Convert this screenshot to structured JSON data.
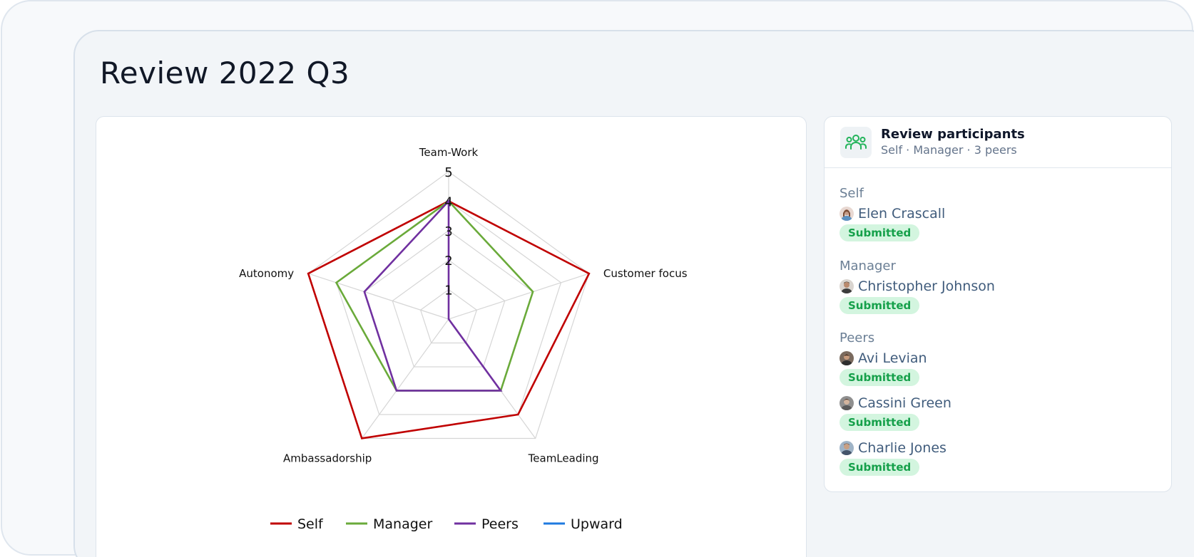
{
  "page": {
    "title": "Review 2022 Q3"
  },
  "participants": {
    "title": "Review participants",
    "subtitle": "Self · Manager · 3 peers",
    "header_icon": "users-icon",
    "groups": [
      {
        "label": "Self",
        "people": [
          {
            "name": "Elen Crascall",
            "status": "Submitted"
          }
        ]
      },
      {
        "label": "Manager",
        "people": [
          {
            "name": "Christopher Johnson",
            "status": "Submitted"
          }
        ]
      },
      {
        "label": "Peers",
        "people": [
          {
            "name": "Avi Levian",
            "status": "Submitted"
          },
          {
            "name": "Cassini Green",
            "status": "Submitted"
          },
          {
            "name": "Charlie Jones",
            "status": "Submitted"
          }
        ]
      }
    ],
    "colors": {
      "badge_bg": "#d3f5df",
      "badge_text": "#15a04a",
      "accent": "#22b35a"
    }
  },
  "chart_data": {
    "type": "radar",
    "axes": [
      "Team-Work",
      "Customer focus",
      "TeamLeading",
      "Ambassadorship",
      "Autonomy"
    ],
    "ticks": [
      "1",
      "2",
      "3",
      "4",
      "5"
    ],
    "range": [
      0,
      5
    ],
    "series": [
      {
        "name": "Self",
        "color": "#c00000",
        "values": [
          4,
          5,
          4,
          5,
          5
        ]
      },
      {
        "name": "Manager",
        "color": "#6aaa3a",
        "values": [
          4,
          3,
          3,
          3,
          4
        ]
      },
      {
        "name": "Peers",
        "color": "#7030a0",
        "values": [
          4,
          0,
          3,
          3,
          3
        ]
      },
      {
        "name": "Upward",
        "color": "#1f7ae0",
        "values": []
      }
    ],
    "grid": true,
    "legend_position": "bottom"
  }
}
